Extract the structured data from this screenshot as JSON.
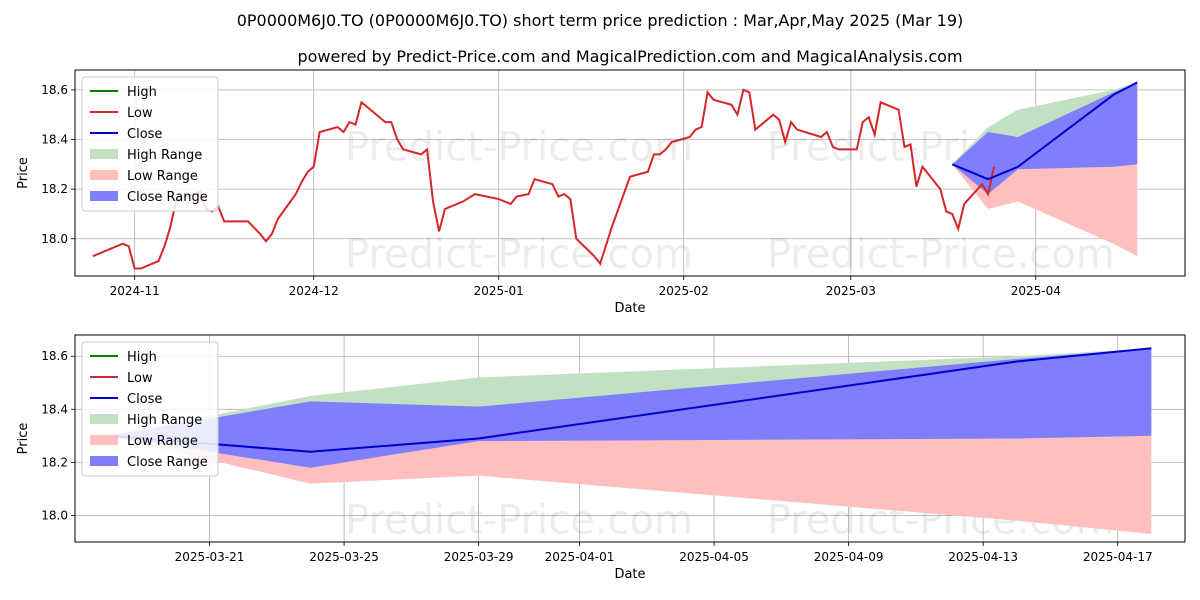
{
  "title": "0P0000M6J0.TO (0P0000M6J0.TO) short term price prediction : Mar,Apr,May 2025 (Mar 19)",
  "subtitle": "powered by Predict-Price.com and MagicalPrediction.com and MagicalAnalysis.com",
  "watermark": "Predict-Price.com",
  "colors": {
    "high": "#008000",
    "low": "#d62728",
    "close": "#0000cc",
    "high_range": "#c2e0c2",
    "low_range": "#ffbfbf",
    "close_range": "#7f7ffd"
  },
  "chart_data": [
    {
      "type": "line",
      "xlabel": "Date",
      "ylabel": "Price",
      "xlim": [
        "2024-10-22",
        "2025-04-26"
      ],
      "ylim": [
        17.85,
        18.68
      ],
      "x_ticks": [
        "2024-11",
        "2024-12",
        "2025-01",
        "2025-02",
        "2025-03",
        "2025-04"
      ],
      "y_ticks": [
        "18.0",
        "18.2",
        "18.4",
        "18.6"
      ],
      "grid": true,
      "legend_position": "top-left",
      "legend": [
        "High",
        "Low",
        "Close",
        "High Range",
        "Low Range",
        "Close Range"
      ],
      "history_low": [
        [
          "2024-10-25",
          17.93
        ],
        [
          "2024-10-29",
          17.97
        ],
        [
          "2024-10-30",
          17.98
        ],
        [
          "2024-10-31",
          17.97
        ],
        [
          "2024-11-01",
          17.88
        ],
        [
          "2024-11-02",
          17.88
        ],
        [
          "2024-11-05",
          17.91
        ],
        [
          "2024-11-06",
          17.97
        ],
        [
          "2024-11-07",
          18.05
        ],
        [
          "2024-11-08",
          18.16
        ],
        [
          "2024-11-11",
          18.18
        ],
        [
          "2024-11-12",
          18.19
        ],
        [
          "2024-11-13",
          18.12
        ],
        [
          "2024-11-14",
          18.11
        ],
        [
          "2024-11-15",
          18.13
        ],
        [
          "2024-11-16",
          18.07
        ],
        [
          "2024-11-20",
          18.07
        ],
        [
          "2024-11-22",
          18.02
        ],
        [
          "2024-11-23",
          17.99
        ],
        [
          "2024-11-24",
          18.02
        ],
        [
          "2024-11-25",
          18.08
        ],
        [
          "2024-11-28",
          18.18
        ],
        [
          "2024-11-29",
          18.23
        ],
        [
          "2024-11-30",
          18.27
        ],
        [
          "2024-12-01",
          18.29
        ],
        [
          "2024-12-02",
          18.43
        ],
        [
          "2024-12-05",
          18.45
        ],
        [
          "2024-12-06",
          18.43
        ],
        [
          "2024-12-07",
          18.47
        ],
        [
          "2024-12-08",
          18.46
        ],
        [
          "2024-12-09",
          18.55
        ],
        [
          "2024-12-12",
          18.49
        ],
        [
          "2024-12-13",
          18.47
        ],
        [
          "2024-12-14",
          18.47
        ],
        [
          "2024-12-15",
          18.4
        ],
        [
          "2024-12-16",
          18.36
        ],
        [
          "2024-12-19",
          18.34
        ],
        [
          "2024-12-20",
          18.36
        ],
        [
          "2024-12-21",
          18.15
        ],
        [
          "2024-12-22",
          18.03
        ],
        [
          "2024-12-23",
          18.12
        ],
        [
          "2024-12-26",
          18.15
        ],
        [
          "2024-12-28",
          18.18
        ],
        [
          "2025-01-01",
          18.16
        ],
        [
          "2025-01-03",
          18.14
        ],
        [
          "2025-01-04",
          18.17
        ],
        [
          "2025-01-06",
          18.18
        ],
        [
          "2025-01-07",
          18.24
        ],
        [
          "2025-01-10",
          18.22
        ],
        [
          "2025-01-11",
          18.17
        ],
        [
          "2025-01-12",
          18.18
        ],
        [
          "2025-01-13",
          18.16
        ],
        [
          "2025-01-14",
          18.0
        ],
        [
          "2025-01-17",
          17.93
        ],
        [
          "2025-01-18",
          17.9
        ],
        [
          "2025-01-20",
          18.05
        ],
        [
          "2025-01-23",
          18.25
        ],
        [
          "2025-01-26",
          18.27
        ],
        [
          "2025-01-27",
          18.34
        ],
        [
          "2025-01-28",
          18.34
        ],
        [
          "2025-01-29",
          18.36
        ],
        [
          "2025-01-30",
          18.39
        ],
        [
          "2025-02-02",
          18.41
        ],
        [
          "2025-02-03",
          18.44
        ],
        [
          "2025-02-04",
          18.45
        ],
        [
          "2025-02-05",
          18.59
        ],
        [
          "2025-02-06",
          18.56
        ],
        [
          "2025-02-09",
          18.54
        ],
        [
          "2025-02-10",
          18.5
        ],
        [
          "2025-02-11",
          18.6
        ],
        [
          "2025-02-12",
          18.59
        ],
        [
          "2025-02-13",
          18.44
        ],
        [
          "2025-02-14",
          18.46
        ],
        [
          "2025-02-16",
          18.5
        ],
        [
          "2025-02-17",
          18.48
        ],
        [
          "2025-02-18",
          18.39
        ],
        [
          "2025-02-19",
          18.47
        ],
        [
          "2025-02-20",
          18.44
        ],
        [
          "2025-02-24",
          18.41
        ],
        [
          "2025-02-25",
          18.43
        ],
        [
          "2025-02-26",
          18.37
        ],
        [
          "2025-02-27",
          18.36
        ],
        [
          "2025-03-02",
          18.36
        ],
        [
          "2025-03-03",
          18.47
        ],
        [
          "2025-03-04",
          18.49
        ],
        [
          "2025-03-05",
          18.42
        ],
        [
          "2025-03-06",
          18.55
        ],
        [
          "2025-03-09",
          18.52
        ],
        [
          "2025-03-10",
          18.37
        ],
        [
          "2025-03-11",
          18.38
        ],
        [
          "2025-03-12",
          18.21
        ],
        [
          "2025-03-13",
          18.29
        ],
        [
          "2025-03-16",
          18.2
        ],
        [
          "2025-03-17",
          18.11
        ],
        [
          "2025-03-18",
          18.1
        ],
        [
          "2025-03-19",
          18.04
        ],
        [
          "2025-03-20",
          18.14
        ],
        [
          "2025-03-23",
          18.22
        ],
        [
          "2025-03-24",
          18.18
        ],
        [
          "2025-03-25",
          18.29
        ]
      ]
    },
    {
      "type": "area",
      "xlabel": "Date",
      "ylabel": "Price",
      "xlim": [
        "2025-03-17",
        "2025-04-19"
      ],
      "ylim": [
        17.9,
        18.68
      ],
      "x_ticks": [
        "2025-03-21",
        "2025-03-25",
        "2025-03-29",
        "2025-04-01",
        "2025-04-05",
        "2025-04-09",
        "2025-04-13",
        "2025-04-17"
      ],
      "y_ticks": [
        "18.0",
        "18.2",
        "18.4",
        "18.6"
      ],
      "grid": true,
      "legend_position": "top-left",
      "legend": [
        "High",
        "Low",
        "Close",
        "High Range",
        "Low Range",
        "Close Range"
      ],
      "x": [
        "2025-03-18",
        "2025-03-24",
        "2025-03-29",
        "2025-04-14",
        "2025-04-18"
      ],
      "high_range": {
        "upper": [
          18.3,
          18.45,
          18.52,
          18.6,
          18.63
        ],
        "lower": [
          18.3,
          18.18,
          18.4,
          18.59,
          18.63
        ]
      },
      "low_range": {
        "upper": [
          18.3,
          18.28,
          18.29,
          18.3,
          18.3
        ],
        "lower": [
          18.3,
          18.12,
          18.15,
          17.98,
          17.93
        ]
      },
      "close_range": {
        "upper": [
          18.3,
          18.43,
          18.41,
          18.59,
          18.63
        ],
        "lower": [
          18.3,
          18.18,
          18.28,
          18.29,
          18.3
        ]
      },
      "close": [
        18.3,
        18.24,
        18.29,
        18.58,
        18.63
      ]
    }
  ]
}
